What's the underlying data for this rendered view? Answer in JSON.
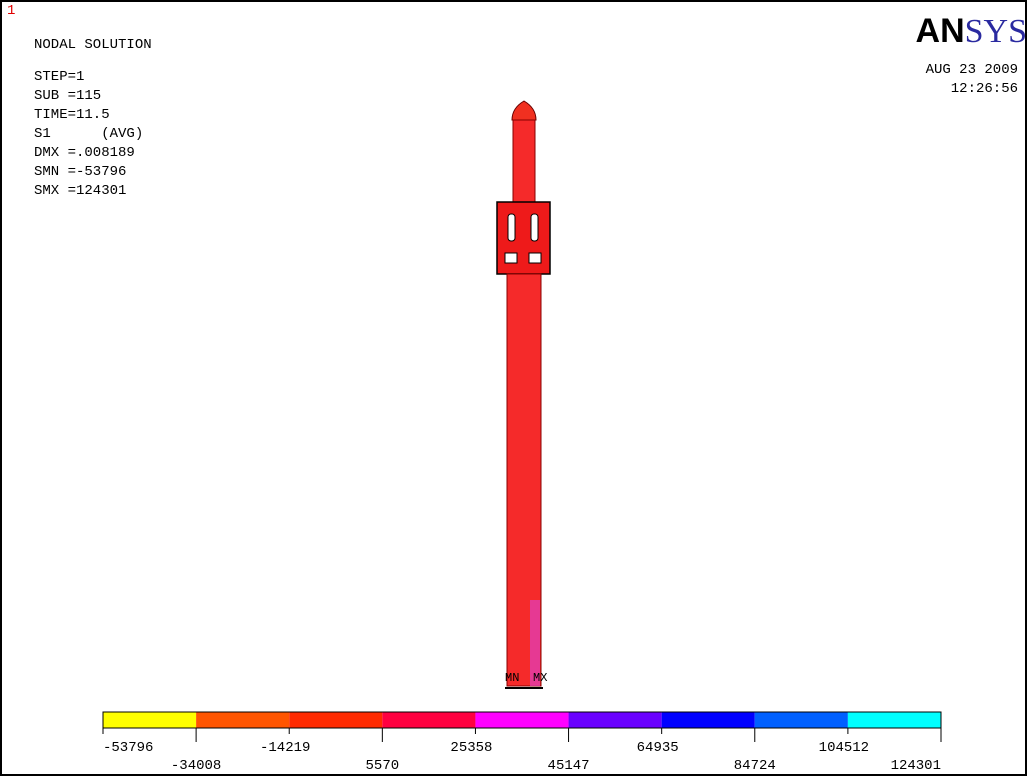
{
  "window_number": "1",
  "title": "NODAL SOLUTION",
  "info": [
    "STEP=1",
    "SUB =115",
    "TIME=11.5",
    "S1      (AVG)",
    "DMX =.008189",
    "SMN =-53796",
    "SMX =124301"
  ],
  "logo": {
    "bold": "AN",
    "light": "SYS"
  },
  "date": "AUG 23 2009",
  "time": "12:26:56",
  "markers": {
    "min": "MN",
    "max": "MX"
  },
  "legend": {
    "levels": [
      -53796,
      -34008,
      -14219,
      5570,
      25358,
      45147,
      64935,
      84724,
      104512,
      124301
    ],
    "colors": [
      "#ffff00",
      "#ff5500",
      "#ff2a00",
      "#ff0040",
      "#ff00ff",
      "#6a00ff",
      "#0000ff",
      "#0060ff",
      "#00ffff"
    ]
  }
}
